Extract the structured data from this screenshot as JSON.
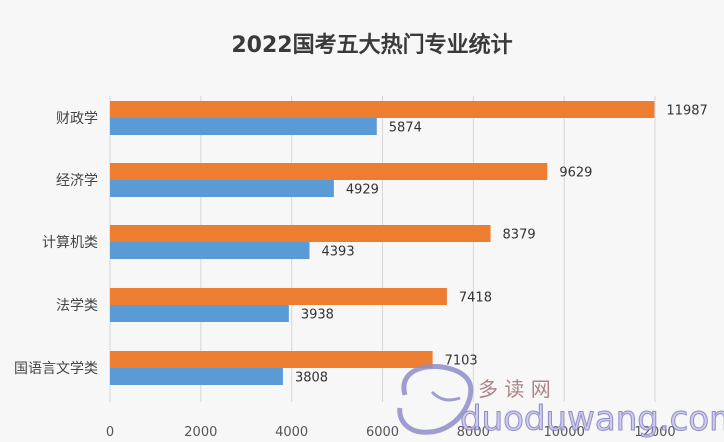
{
  "chart_data": {
    "type": "bar",
    "orientation": "horizontal",
    "title": "2022国考五大热门专业统计",
    "categories": [
      "财政学",
      "经济学",
      "计算机类",
      "法学类",
      "国语言文学类"
    ],
    "series": [
      {
        "values": [
          11987,
          9629,
          8379,
          7418,
          7103
        ],
        "color": "#ed7d31"
      },
      {
        "values": [
          5874,
          4929,
          4393,
          3938,
          3808
        ],
        "color": "#5b9bd5"
      }
    ],
    "xlim": [
      0,
      12000
    ],
    "ticks": [
      0,
      2000,
      4000,
      6000,
      8000,
      10000,
      12000
    ],
    "tick_labels": [
      "0",
      "2000",
      "4000",
      "6000",
      "8000",
      "10000",
      "12000"
    ],
    "grid": true
  },
  "watermark": {
    "cn_text": "多 读 网",
    "en_text": "duoduwang.com"
  }
}
